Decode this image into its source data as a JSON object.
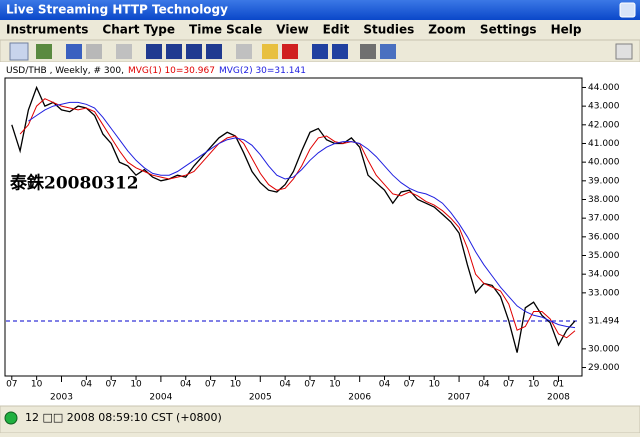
{
  "window": {
    "title": "Live Streaming HTTP Technology"
  },
  "menu": [
    "Instruments",
    "Chart Type",
    "Time Scale",
    "View",
    "Edit",
    "Studies",
    "Zoom",
    "Settings",
    "Help"
  ],
  "status": "12 □□ 2008 08:59:10  CST (+0800)",
  "chart_data": {
    "type": "line",
    "annotation": "泰銖20080312",
    "x": [
      0,
      1,
      2,
      3,
      4,
      5,
      6,
      7,
      8,
      9,
      10,
      11,
      12,
      13,
      14,
      15,
      16,
      17,
      18,
      19,
      20,
      21,
      22,
      23,
      24,
      25,
      26,
      27,
      28,
      29,
      30,
      31,
      32,
      33,
      34,
      35,
      36,
      37,
      38,
      39,
      40,
      41,
      42,
      43,
      44,
      45,
      46,
      47,
      48,
      49,
      50,
      51,
      52,
      53,
      54,
      55,
      56,
      57,
      58,
      59,
      60,
      61,
      62,
      63,
      64,
      65,
      66,
      67,
      68
    ],
    "series": [
      {
        "name": "USD/THB , Weekly, # 300,",
        "color": "#000000",
        "values": [
          42.0,
          40.6,
          42.8,
          44.0,
          43.0,
          43.2,
          42.8,
          42.7,
          43.0,
          42.9,
          42.5,
          41.5,
          41.0,
          40.0,
          39.8,
          39.3,
          39.6,
          39.2,
          39.0,
          39.1,
          39.3,
          39.2,
          39.8,
          40.3,
          40.8,
          41.3,
          41.6,
          41.4,
          40.5,
          39.5,
          38.9,
          38.5,
          38.4,
          38.8,
          39.5,
          40.6,
          41.6,
          41.8,
          41.2,
          41.0,
          41.0,
          41.3,
          40.8,
          39.3,
          38.9,
          38.5,
          37.8,
          38.4,
          38.5,
          38.0,
          37.8,
          37.6,
          37.2,
          36.8,
          36.2,
          34.5,
          33.0,
          33.5,
          33.4,
          32.8,
          31.5,
          29.8,
          32.2,
          32.5,
          31.8,
          31.4,
          30.2,
          31.0,
          31.5
        ]
      },
      {
        "name": "MVG(1) 10=30.967",
        "color": "#e00000",
        "values": [
          null,
          41.5,
          42.0,
          43.0,
          43.4,
          43.2,
          43.0,
          42.9,
          42.8,
          42.9,
          42.7,
          42.0,
          41.3,
          40.6,
          40.0,
          39.7,
          39.5,
          39.3,
          39.2,
          39.1,
          39.2,
          39.3,
          39.5,
          40.0,
          40.5,
          41.0,
          41.3,
          41.4,
          41.0,
          40.2,
          39.4,
          38.8,
          38.5,
          38.6,
          39.1,
          39.8,
          40.7,
          41.3,
          41.4,
          41.1,
          41.0,
          41.1,
          41.0,
          40.1,
          39.3,
          38.8,
          38.3,
          38.2,
          38.4,
          38.2,
          37.9,
          37.7,
          37.4,
          37.0,
          36.5,
          35.4,
          34.0,
          33.5,
          33.3,
          33.1,
          32.4,
          31.0,
          31.2,
          32.0,
          32.0,
          31.6,
          30.8,
          30.6,
          30.967
        ]
      },
      {
        "name": "MVG(2) 30=31.141",
        "color": "#2020e0",
        "values": [
          null,
          null,
          42.2,
          42.5,
          42.8,
          43.0,
          43.1,
          43.2,
          43.2,
          43.1,
          42.9,
          42.4,
          41.8,
          41.2,
          40.6,
          40.1,
          39.7,
          39.4,
          39.3,
          39.3,
          39.5,
          39.8,
          40.1,
          40.4,
          40.7,
          41.0,
          41.2,
          41.3,
          41.2,
          40.9,
          40.4,
          39.8,
          39.3,
          39.1,
          39.2,
          39.6,
          40.1,
          40.5,
          40.8,
          41.0,
          41.1,
          41.1,
          41.0,
          40.7,
          40.3,
          39.8,
          39.3,
          38.9,
          38.6,
          38.4,
          38.3,
          38.1,
          37.8,
          37.3,
          36.7,
          36.0,
          35.2,
          34.5,
          33.9,
          33.3,
          32.8,
          32.3,
          32.0,
          31.8,
          31.7,
          31.5,
          31.3,
          31.2,
          31.141
        ]
      }
    ],
    "hline": {
      "value": 31.494,
      "color": "#0000cc"
    },
    "xlim": [
      -0.7,
      68.6
    ],
    "ylim": [
      28.6,
      44.4
    ],
    "yticks": [
      {
        "value": 44,
        "label": "44.000"
      },
      {
        "value": 43,
        "label": "43.000"
      },
      {
        "value": 42,
        "label": "42.000"
      },
      {
        "value": 41,
        "label": "41.000"
      },
      {
        "value": 40,
        "label": "40.000"
      },
      {
        "value": 39,
        "label": "39.000"
      },
      {
        "value": 38,
        "label": "38.000"
      },
      {
        "value": 37,
        "label": "37.000"
      },
      {
        "value": 36,
        "label": "36.000"
      },
      {
        "value": 35,
        "label": "35.000"
      },
      {
        "value": 34,
        "label": "34.000"
      },
      {
        "value": 33,
        "label": "33.000"
      },
      {
        "value": 30,
        "label": "30.000"
      },
      {
        "value": 29,
        "label": "29.000"
      }
    ],
    "xticks": [
      {
        "value": 0,
        "label": "07"
      },
      {
        "value": 3,
        "label": "10"
      },
      {
        "value": 9,
        "label": "04"
      },
      {
        "value": 12,
        "label": "07"
      },
      {
        "value": 15,
        "label": "10"
      },
      {
        "value": 21,
        "label": "04"
      },
      {
        "value": 24,
        "label": "07"
      },
      {
        "value": 27,
        "label": "10"
      },
      {
        "value": 33,
        "label": "04"
      },
      {
        "value": 36,
        "label": "07"
      },
      {
        "value": 39,
        "label": "10"
      },
      {
        "value": 45,
        "label": "04"
      },
      {
        "value": 48,
        "label": "07"
      },
      {
        "value": 51,
        "label": "10"
      },
      {
        "value": 57,
        "label": "04"
      },
      {
        "value": 60,
        "label": "07"
      },
      {
        "value": 63,
        "label": "10"
      },
      {
        "value": 66,
        "label": "01"
      }
    ],
    "year_ticks": [
      {
        "value": 6,
        "label": "2003"
      },
      {
        "value": 18,
        "label": "2004"
      },
      {
        "value": 30,
        "label": "2005"
      },
      {
        "value": 42,
        "label": "2006"
      },
      {
        "value": 54,
        "label": "2007"
      },
      {
        "value": 66,
        "label": "2008"
      }
    ]
  }
}
